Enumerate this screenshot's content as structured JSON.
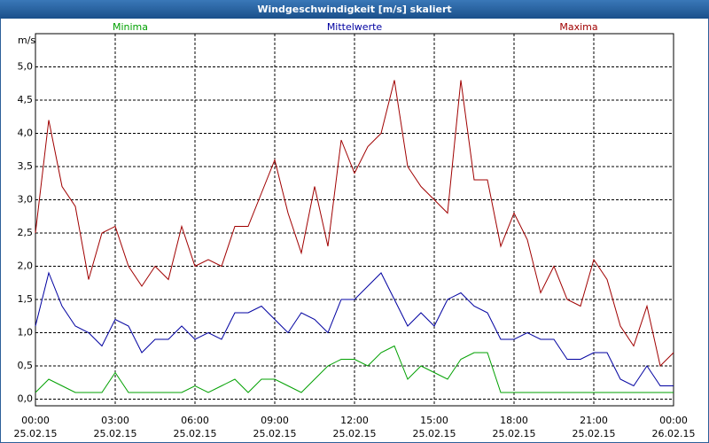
{
  "chart_data": {
    "type": "line",
    "title": "Windgeschwindigkeit [m/s] skaliert",
    "y_label": "m/s",
    "x": [
      0,
      0.5,
      1,
      1.5,
      2,
      2.5,
      3,
      3.5,
      4,
      4.5,
      5,
      5.5,
      6,
      6.5,
      7,
      7.5,
      8,
      8.5,
      9,
      9.5,
      10,
      10.5,
      11,
      11.5,
      12,
      12.5,
      13,
      13.5,
      14,
      14.5,
      15,
      15.5,
      16,
      16.5,
      17,
      17.5,
      18,
      18.5,
      19,
      19.5,
      20,
      20.5,
      21,
      21.5,
      22,
      22.5,
      23,
      23.5,
      24
    ],
    "series": [
      {
        "name": "Minima",
        "color": "#00a000",
        "values": [
          0.1,
          0.3,
          0.2,
          0.1,
          0.1,
          0.1,
          0.4,
          0.1,
          0.1,
          0.1,
          0.1,
          0.1,
          0.2,
          0.1,
          0.2,
          0.3,
          0.1,
          0.3,
          0.3,
          0.2,
          0.1,
          0.3,
          0.5,
          0.6,
          0.6,
          0.5,
          0.7,
          0.8,
          0.3,
          0.5,
          0.4,
          0.3,
          0.6,
          0.7,
          0.7,
          0.1,
          0.1,
          0.1,
          0.1,
          0.1,
          0.1,
          0.1,
          0.1,
          0.1,
          0.1,
          0.1,
          0.1,
          0.1,
          0.1
        ]
      },
      {
        "name": "Mittelwerte",
        "color": "#0000a0",
        "values": [
          1.1,
          1.9,
          1.4,
          1.1,
          1.0,
          0.8,
          1.2,
          1.1,
          0.7,
          0.9,
          0.9,
          1.1,
          0.9,
          1.0,
          0.9,
          1.3,
          1.3,
          1.4,
          1.2,
          1.0,
          1.3,
          1.2,
          1.0,
          1.5,
          1.5,
          1.7,
          1.9,
          1.5,
          1.1,
          1.3,
          1.1,
          1.5,
          1.6,
          1.4,
          1.3,
          0.9,
          0.9,
          1.0,
          0.9,
          0.9,
          0.6,
          0.6,
          0.7,
          0.7,
          0.3,
          0.2,
          0.5,
          0.2,
          0.2
        ]
      },
      {
        "name": "Maxima",
        "color": "#a00000",
        "values": [
          2.5,
          4.2,
          3.2,
          2.9,
          1.8,
          2.5,
          2.6,
          2.0,
          1.7,
          2.0,
          1.8,
          2.6,
          2.0,
          2.1,
          2.0,
          2.6,
          2.6,
          3.1,
          3.6,
          2.8,
          2.2,
          3.2,
          2.3,
          3.9,
          3.4,
          3.8,
          4.0,
          4.8,
          3.5,
          3.2,
          3.0,
          2.8,
          4.8,
          3.3,
          3.3,
          2.3,
          2.8,
          2.4,
          1.6,
          2.0,
          1.5,
          1.4,
          2.1,
          1.8,
          1.1,
          0.8,
          1.4,
          0.5,
          0.7
        ]
      }
    ],
    "xlim": [
      0,
      24
    ],
    "xticks": [
      {
        "value": 0,
        "label": "00:00",
        "date": "25.02.15"
      },
      {
        "value": 3,
        "label": "03:00",
        "date": "25.02.15"
      },
      {
        "value": 6,
        "label": "06:00",
        "date": "25.02.15"
      },
      {
        "value": 9,
        "label": "09:00",
        "date": "25.02.15"
      },
      {
        "value": 12,
        "label": "12:00",
        "date": "25.02.15"
      },
      {
        "value": 15,
        "label": "15:00",
        "date": "25.02.15"
      },
      {
        "value": 18,
        "label": "18:00",
        "date": "25.02.15"
      },
      {
        "value": 21,
        "label": "21:00",
        "date": "25.02.15"
      },
      {
        "value": 24,
        "label": "00:00",
        "date": "26.02.15"
      }
    ],
    "ylim": [
      -0.1,
      5.5
    ],
    "yticks": [
      {
        "value": 0,
        "label": "0,0"
      },
      {
        "value": 0.5,
        "label": "0,5"
      },
      {
        "value": 1,
        "label": "1,0"
      },
      {
        "value": 1.5,
        "label": "1,5"
      },
      {
        "value": 2,
        "label": "2,0"
      },
      {
        "value": 2.5,
        "label": "2,5"
      },
      {
        "value": 3,
        "label": "3,0"
      },
      {
        "value": 3.5,
        "label": "3,5"
      },
      {
        "value": 4,
        "label": "4,0"
      },
      {
        "value": 4.5,
        "label": "4,5"
      },
      {
        "value": 5,
        "label": "5,0"
      }
    ],
    "grid": true
  }
}
